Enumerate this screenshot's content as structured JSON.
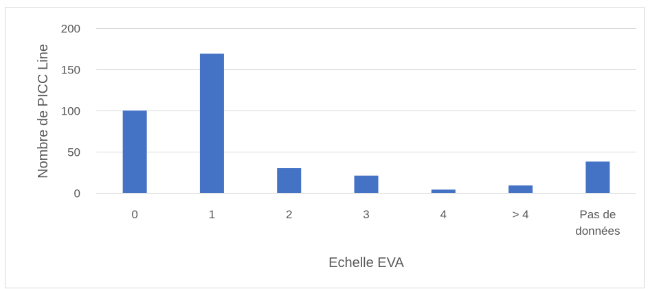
{
  "chart_data": {
    "type": "bar",
    "categories": [
      "0",
      "1",
      "2",
      "3",
      "4",
      "> 4",
      "Pas de données"
    ],
    "category_lines": [
      [
        "0"
      ],
      [
        "1"
      ],
      [
        "2"
      ],
      [
        "3"
      ],
      [
        "4"
      ],
      [
        "> 4"
      ],
      [
        "Pas de",
        "données"
      ]
    ],
    "values": [
      100,
      169,
      30,
      21,
      4,
      9,
      38
    ],
    "title": "",
    "xlabel": "Echelle EVA",
    "ylabel": "Nombre de PICC Line",
    "ylim": [
      0,
      200
    ],
    "yticks": [
      "0",
      "50",
      "100",
      "150",
      "200"
    ],
    "grid": true,
    "legend": "none",
    "bar_color": "#4472c4",
    "grid_color": "#d9d9d9",
    "text_color": "#595959"
  }
}
